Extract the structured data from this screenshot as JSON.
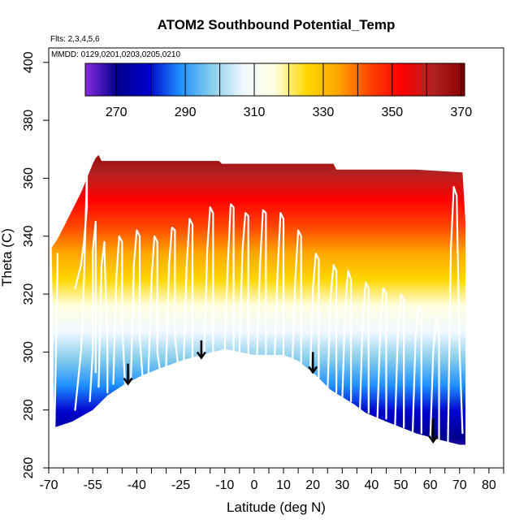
{
  "chart_data": {
    "type": "heatmap",
    "title": "ATOM2 Southbound Potential_Temp",
    "flights_note": "Flts: 2,3,4,5,6",
    "dates_note": "MMDD: 0129,0201,0203,0205,0210",
    "xlabel": "Latitude (deg N)",
    "ylabel": "Theta (C)",
    "xlim": [
      -70,
      85
    ],
    "ylim": [
      260,
      405
    ],
    "x_major_ticks": [
      -70,
      -55,
      -40,
      -25,
      -10,
      0,
      10,
      20,
      30,
      40,
      50,
      60,
      70,
      80
    ],
    "x_minor_ticks": [
      -65,
      -60,
      -50,
      -45,
      -35,
      -30,
      -20,
      -15,
      -5,
      5,
      15,
      25,
      35,
      45,
      55,
      65,
      75,
      85
    ],
    "y_ticks": [
      260,
      280,
      300,
      320,
      340,
      360,
      380,
      400
    ],
    "colorbar": {
      "min": 261,
      "max": 371,
      "ticks": [
        270,
        290,
        310,
        330,
        350,
        370
      ],
      "divisions": [
        280,
        300,
        320,
        340,
        360
      ],
      "stops": [
        "#8a2be2",
        "#00008b",
        "#0000cd",
        "#1e90ff",
        "#87ceeb",
        "#f0f8ff",
        "#ffffe0",
        "#ffd700",
        "#ffa500",
        "#ff4500",
        "#ff0000",
        "#b22222",
        "#8b0000"
      ]
    },
    "curtain_top": [
      [
        -69,
        336
      ],
      [
        -67,
        339
      ],
      [
        -65,
        343
      ],
      [
        -63,
        347
      ],
      [
        -61,
        351
      ],
      [
        -59,
        355
      ],
      [
        -57,
        360
      ],
      [
        -55,
        365
      ],
      [
        -54,
        367
      ],
      [
        -53,
        368
      ],
      [
        -52,
        366
      ],
      [
        -40,
        366
      ],
      [
        -25,
        366
      ],
      [
        -12,
        366
      ],
      [
        -11,
        365
      ],
      [
        0,
        365
      ],
      [
        14,
        365
      ],
      [
        27,
        365
      ],
      [
        28,
        363
      ],
      [
        40,
        363
      ],
      [
        55,
        363
      ],
      [
        71,
        362
      ],
      [
        72,
        345
      ]
    ],
    "curtain_bottom": [
      [
        72,
        268
      ],
      [
        70,
        268
      ],
      [
        62,
        270
      ],
      [
        55,
        272
      ],
      [
        45,
        276
      ],
      [
        38,
        279
      ],
      [
        34,
        282
      ],
      [
        26,
        287
      ],
      [
        21,
        292
      ],
      [
        15,
        297
      ],
      [
        10,
        299
      ],
      [
        0,
        299
      ],
      [
        -5,
        300
      ],
      [
        -10,
        301
      ],
      [
        -18,
        299
      ],
      [
        -25,
        297
      ],
      [
        -33,
        294
      ],
      [
        -38,
        292
      ],
      [
        -44,
        289
      ],
      [
        -50,
        285
      ],
      [
        -55,
        280
      ],
      [
        -62,
        276
      ],
      [
        -68,
        274
      ]
    ],
    "flight_profiles": [
      {
        "x": [
          -68,
          -67,
          -67
        ],
        "y": [
          274,
          330,
          334
        ]
      },
      {
        "x": [
          -61,
          -60,
          -59,
          -58,
          -57,
          -57,
          -58,
          -59,
          -61
        ],
        "y": [
          322,
          326,
          330,
          338,
          350,
          362,
          325,
          300,
          280
        ]
      },
      {
        "x": [
          -56,
          -55,
          -55,
          -54,
          -54
        ],
        "y": [
          283,
          300,
          335,
          345,
          293
        ]
      },
      {
        "x": [
          -53,
          -52,
          -51,
          -51,
          -50,
          -50
        ],
        "y": [
          288,
          330,
          338,
          336,
          300,
          286
        ]
      },
      {
        "x": [
          -48,
          -47,
          -46,
          -45,
          -45,
          -44
        ],
        "y": [
          289,
          325,
          340,
          338,
          310,
          289
        ]
      },
      {
        "x": [
          -42,
          -41,
          -40,
          -39,
          -39,
          -38
        ],
        "y": [
          291,
          330,
          342,
          340,
          305,
          291
        ]
      },
      {
        "x": [
          -36,
          -35,
          -34,
          -33,
          -33,
          -32
        ],
        "y": [
          293,
          325,
          340,
          338,
          300,
          293
        ]
      },
      {
        "x": [
          -30,
          -29,
          -28,
          -27,
          -27,
          -26
        ],
        "y": [
          295,
          330,
          343,
          342,
          305,
          296
        ]
      },
      {
        "x": [
          -24,
          -23,
          -22,
          -21,
          -21
        ],
        "y": [
          297,
          330,
          346,
          344,
          297
        ]
      },
      {
        "x": [
          -17,
          -16,
          -15,
          -14,
          -14
        ],
        "y": [
          299,
          335,
          350,
          348,
          299
        ]
      },
      {
        "x": [
          -10,
          -9,
          -8,
          -7,
          -7
        ],
        "y": [
          301,
          330,
          351,
          350,
          300
        ]
      },
      {
        "x": [
          -5,
          -4,
          -3,
          -2,
          -2
        ],
        "y": [
          300,
          335,
          348,
          347,
          299
        ]
      },
      {
        "x": [
          1,
          2,
          3,
          4,
          4
        ],
        "y": [
          299,
          330,
          349,
          348,
          299
        ]
      },
      {
        "x": [
          7,
          8,
          9,
          10,
          10
        ],
        "y": [
          299,
          328,
          348,
          346,
          299
        ]
      },
      {
        "x": [
          13,
          14,
          15,
          16,
          16
        ],
        "y": [
          296,
          325,
          342,
          340,
          296
        ]
      },
      {
        "x": [
          19,
          20,
          21,
          22,
          22
        ],
        "y": [
          290,
          322,
          334,
          332,
          291
        ]
      },
      {
        "x": [
          25,
          26,
          27,
          28,
          28
        ],
        "y": [
          286,
          318,
          330,
          328,
          286
        ]
      },
      {
        "x": [
          30,
          31,
          32,
          33,
          33
        ],
        "y": [
          283,
          315,
          328,
          325,
          283
        ]
      },
      {
        "x": [
          36,
          37,
          38,
          39,
          39
        ],
        "y": [
          279,
          312,
          324,
          322,
          279
        ]
      },
      {
        "x": [
          42,
          43,
          44,
          45,
          45
        ],
        "y": [
          277,
          310,
          322,
          320,
          277
        ]
      },
      {
        "x": [
          48,
          49,
          50,
          51,
          51
        ],
        "y": [
          274,
          308,
          320,
          318,
          274
        ]
      },
      {
        "x": [
          54,
          55,
          56,
          57,
          57
        ],
        "y": [
          272,
          305,
          316,
          314,
          272
        ]
      },
      {
        "x": [
          60,
          61,
          62,
          63,
          63
        ],
        "y": [
          270,
          300,
          312,
          308,
          270
        ]
      },
      {
        "x": [
          66,
          67,
          68,
          69,
          70,
          71
        ],
        "y": [
          268,
          335,
          357,
          354,
          300,
          272
        ]
      }
    ],
    "arrows": [
      {
        "x": -43,
        "y_start": 296,
        "y_end": 289
      },
      {
        "x": -18,
        "y_start": 304,
        "y_end": 298
      },
      {
        "x": 20,
        "y_start": 300,
        "y_end": 293
      },
      {
        "x": 61,
        "y_start": 277,
        "y_end": 269
      }
    ]
  }
}
